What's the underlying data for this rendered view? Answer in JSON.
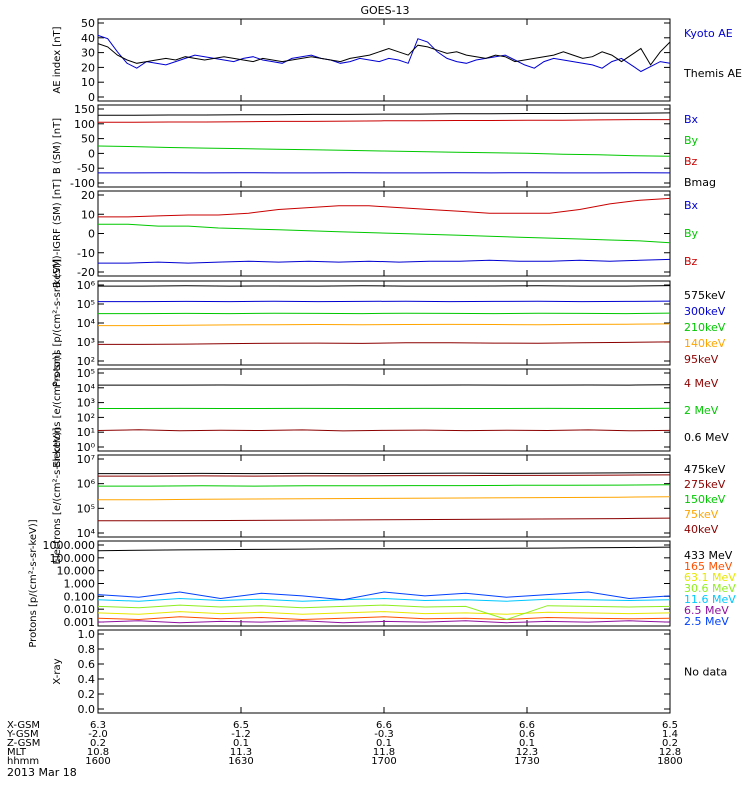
{
  "title": "GOES-13",
  "date_label": "2013 Mar 18",
  "colors": {
    "black": "#000000",
    "blue": "#0000d0",
    "green": "#00c800",
    "red": "#c80000",
    "orange": "#ffa500",
    "darkred": "#8b0000",
    "brightblue": "#0040ff",
    "yellow": "#e8e800",
    "yellowgreen": "#90ee20",
    "cyan": "#00c8ff",
    "darkorange": "#ff5000",
    "purple": "#9010a0"
  },
  "chart_data": [
    {
      "type": "line",
      "ylabel": "AE index [nT]",
      "ylim": [
        0,
        50
      ],
      "yticks": [
        "0",
        "10",
        "20",
        "30",
        "40",
        "50"
      ],
      "series": [
        {
          "name": "Kyoto AE",
          "color": "blue",
          "values": [
            40,
            38,
            30,
            23,
            20,
            24,
            23,
            22,
            24,
            26,
            28,
            27,
            26,
            25,
            24,
            26,
            27,
            25,
            24,
            23,
            26,
            27,
            28,
            26,
            25,
            23,
            24,
            26,
            25,
            24,
            26,
            25,
            23,
            38,
            36,
            30,
            26,
            24,
            23,
            25,
            26,
            27,
            28,
            25,
            22,
            20,
            24,
            26,
            25,
            24,
            23,
            22,
            20,
            24,
            26,
            22,
            18,
            21,
            24,
            23
          ]
        },
        {
          "name": "Themis AE",
          "color": "black",
          "values": [
            35,
            33,
            28,
            25,
            23,
            24,
            25,
            26,
            25,
            27,
            26,
            25,
            26,
            27,
            26,
            25,
            24,
            26,
            25,
            24,
            25,
            26,
            27,
            26,
            25,
            24,
            26,
            27,
            28,
            30,
            32,
            30,
            28,
            34,
            33,
            31,
            29,
            30,
            28,
            27,
            26,
            28,
            27,
            24,
            25,
            26,
            27,
            28,
            30,
            28,
            26,
            27,
            30,
            28,
            24,
            28,
            32,
            22,
            30,
            36
          ]
        }
      ]
    },
    {
      "type": "line",
      "ylabel": "B (SM) [nT]",
      "ylim": [
        -120,
        160
      ],
      "yticks": [
        "-100",
        "-50",
        "0",
        "50",
        "100",
        "150"
      ],
      "series": [
        {
          "name": "Bx",
          "color": "blue",
          "values": [
            -72,
            -72,
            -71,
            -72,
            -71,
            -72,
            -72,
            -71,
            -72,
            -72,
            -71,
            -72,
            -71,
            -72,
            -72,
            -71,
            -72
          ]
        },
        {
          "name": "By",
          "color": "green",
          "values": [
            20,
            18,
            15,
            13,
            11,
            9,
            7,
            5,
            3,
            1,
            -1,
            -3,
            -5,
            -8,
            -10,
            -13,
            -15
          ]
        },
        {
          "name": "Bz",
          "color": "red",
          "values": [
            101,
            101,
            102,
            102,
            103,
            104,
            104,
            105,
            106,
            106,
            107,
            107,
            108,
            108,
            109,
            110,
            110
          ]
        },
        {
          "name": "Bmag",
          "color": "black",
          "values": [
            125,
            125,
            126,
            126,
            127,
            127,
            128,
            128,
            129,
            129,
            130,
            130,
            131,
            131,
            132,
            132,
            133
          ]
        }
      ]
    },
    {
      "type": "line",
      "ylabel": "B (SM)-IGRF (SM) [nT]",
      "ylim": [
        -24,
        22
      ],
      "yticks": [
        "-20",
        "-10",
        "0",
        "10",
        "20"
      ],
      "series": [
        {
          "name": "Bx",
          "color": "blue",
          "values": [
            -17,
            -17,
            -16.5,
            -17,
            -16.5,
            -16,
            -16.5,
            -16,
            -16.5,
            -16,
            -16.5,
            -16,
            -16,
            -15.5,
            -16,
            -16,
            -15.5,
            -16,
            -15.5,
            -15
          ]
        },
        {
          "name": "By",
          "color": "green",
          "values": [
            4,
            4,
            3,
            3,
            2,
            1.5,
            1,
            0.5,
            0,
            -0.5,
            -1,
            -1.5,
            -2,
            -2.5,
            -3,
            -3.5,
            -4,
            -4.5,
            -5,
            -6
          ]
        },
        {
          "name": "Bz",
          "color": "red",
          "values": [
            8,
            8,
            8.5,
            9,
            9,
            10,
            12,
            13,
            14,
            14,
            13,
            12,
            11,
            10,
            10,
            10,
            12,
            15,
            17,
            18
          ]
        }
      ]
    },
    {
      "type": "line",
      "ylabel": "Protons [p/(cm²-s-sr-keV)]",
      "ylim": [
        1.3,
        6.2
      ],
      "log": true,
      "yticks": [
        "10²",
        "10³",
        "10⁴",
        "10⁵",
        "10⁶"
      ],
      "series": [
        {
          "name": "575keV",
          "color": "black",
          "values": [
            5.9,
            5.9,
            5.92,
            5.9,
            5.91,
            5.9,
            5.92,
            5.9,
            5.9,
            5.91,
            5.92,
            5.9,
            5.9,
            5.93
          ]
        },
        {
          "name": "300keV",
          "color": "blue",
          "values": [
            5.0,
            5.0,
            5.01,
            5.0,
            5.02,
            5.0,
            5.01,
            5.02,
            5.0,
            5.01,
            5.02,
            5.0,
            5.01,
            5.03
          ]
        },
        {
          "name": "210keV",
          "color": "green",
          "values": [
            4.3,
            4.3,
            4.31,
            4.3,
            4.32,
            4.31,
            4.3,
            4.32,
            4.31,
            4.3,
            4.32,
            4.31,
            4.3,
            4.33
          ]
        },
        {
          "name": "140keV",
          "color": "orange",
          "values": [
            3.6,
            3.6,
            3.62,
            3.64,
            3.65,
            3.66,
            3.65,
            3.66,
            3.67,
            3.66,
            3.65,
            3.67,
            3.68,
            3.7
          ]
        },
        {
          "name": "95keV",
          "color": "darkred",
          "values": [
            2.5,
            2.5,
            2.52,
            2.55,
            2.57,
            2.58,
            2.56,
            2.6,
            2.6,
            2.58,
            2.57,
            2.6,
            2.62,
            2.65
          ]
        }
      ]
    },
    {
      "type": "line",
      "ylabel": "Electrons [e/(cm²-s-sr)]",
      "ylim": [
        -0.4,
        5.2
      ],
      "log": true,
      "yticks": [
        "10⁰",
        "10¹",
        "10²",
        "10³",
        "10⁴",
        "10⁵"
      ],
      "series": [
        {
          "name": "4 MeV",
          "color": "darkred",
          "values": [
            1.0,
            1.05,
            0.98,
            1.02,
            1.0,
            1.04,
            0.97,
            1.01,
            1.03,
            0.99,
            1.02,
            1.0,
            1.04,
            0.98,
            1.01
          ]
        },
        {
          "name": "2 MeV",
          "color": "green",
          "values": [
            2.5,
            2.5,
            2.51,
            2.5,
            2.5,
            2.51,
            2.5,
            2.5,
            2.51,
            2.5,
            2.5,
            2.51,
            2.5,
            2.5,
            2.52
          ]
        },
        {
          "name": "0.6 MeV",
          "color": "black",
          "values": [
            4.1,
            4.1,
            4.1,
            4.11,
            4.1,
            4.1,
            4.11,
            4.1,
            4.1,
            4.11,
            4.1,
            4.1,
            4.11,
            4.1,
            4.12
          ]
        }
      ]
    },
    {
      "type": "line",
      "ylabel": "Electrons [e/(cm²-s-sr-keV)]",
      "ylim": [
        3.7,
        7.0
      ],
      "log": true,
      "yticks": [
        "10⁴",
        "10⁵",
        "10⁶",
        "10⁷"
      ],
      "series": [
        {
          "name": "475keV",
          "color": "black",
          "values": [
            6.25,
            6.25,
            6.26,
            6.25,
            6.26,
            6.25,
            6.26,
            6.27,
            6.26,
            6.27,
            6.28,
            6.3
          ]
        },
        {
          "name": "275keV",
          "color": "darkred",
          "values": [
            6.15,
            6.15,
            6.16,
            6.15,
            6.16,
            6.16,
            6.17,
            6.17,
            6.18,
            6.18,
            6.19,
            6.2
          ]
        },
        {
          "name": "150keV",
          "color": "green",
          "values": [
            5.75,
            5.75,
            5.76,
            5.75,
            5.76,
            5.76,
            5.77,
            5.77,
            5.78,
            5.78,
            5.79,
            5.8
          ]
        },
        {
          "name": "75keV",
          "color": "orange",
          "values": [
            5.2,
            5.2,
            5.22,
            5.23,
            5.24,
            5.25,
            5.26,
            5.27,
            5.28,
            5.29,
            5.3,
            5.32
          ]
        },
        {
          "name": "40keV",
          "color": "darkred",
          "values": [
            4.35,
            4.35,
            4.36,
            4.37,
            4.38,
            4.39,
            4.4,
            4.41,
            4.42,
            4.43,
            4.44,
            4.46
          ]
        }
      ]
    },
    {
      "type": "line",
      "ylabel": "Protons [p/(cm²-s-sr-keV)]",
      "ylim": [
        -3.2,
        3.3
      ],
      "log": true,
      "yticks": [
        "0.001",
        "0.010",
        "0.100",
        "1.000",
        "10.000",
        "100.000",
        "1000.000"
      ],
      "series": [
        {
          "name": "433 MeV",
          "color": "black",
          "values": [
            2.55,
            2.6,
            2.62,
            2.64,
            2.66,
            2.68,
            2.7,
            2.7,
            2.72,
            2.73,
            2.75,
            2.76,
            2.78,
            2.8,
            2.83
          ]
        },
        {
          "name": "165 MeV",
          "color": "darkorange",
          "values": [
            -2.6,
            -2.7,
            -2.5,
            -2.65,
            -2.55,
            -2.7,
            -2.6,
            -2.5,
            -2.65,
            -2.6,
            -2.7,
            -2.55,
            -2.6,
            -2.65,
            -2.6
          ]
        },
        {
          "name": "63.1 MeV",
          "color": "yellow",
          "values": [
            -2.2,
            -2.3,
            -2.1,
            -2.25,
            -2.15,
            -2.3,
            -2.2,
            -2.1,
            -2.25,
            -2.2,
            -2.3,
            -2.15,
            -2.2,
            -2.25,
            -2.2
          ]
        },
        {
          "name": "30.6 MeV",
          "color": "yellowgreen",
          "values": [
            -1.7,
            -1.8,
            -1.6,
            -1.75,
            -1.65,
            -1.8,
            -1.7,
            -1.6,
            -1.75,
            -1.7,
            -2.7,
            -1.65,
            -1.7,
            -1.75,
            -1.7
          ]
        },
        {
          "name": "11.6 MeV",
          "color": "cyan",
          "values": [
            -1.2,
            -1.3,
            -1.1,
            -1.25,
            -1.15,
            -1.3,
            -1.2,
            -1.1,
            -1.25,
            -1.2,
            -1.3,
            -1.15,
            -1.2,
            -1.25,
            -1.2
          ]
        },
        {
          "name": "6.5 MeV",
          "color": "purple",
          "values": [
            -2.9,
            -2.8,
            -2.95,
            -2.85,
            -2.9,
            -2.8,
            -2.95,
            -2.85,
            -2.9,
            -2.8,
            -2.95,
            -2.85,
            -2.9,
            -2.8,
            -2.9
          ]
        },
        {
          "name": "2.5 MeV",
          "color": "brightblue",
          "values": [
            -0.8,
            -1.0,
            -0.6,
            -1.1,
            -0.7,
            -0.9,
            -1.2,
            -0.6,
            -0.9,
            -0.7,
            -1.0,
            -0.8,
            -0.6,
            -1.1,
            -0.9
          ]
        }
      ]
    },
    {
      "type": "line",
      "ylabel": "X-ray",
      "ylim": [
        0,
        1
      ],
      "yticks": [
        "0.0",
        "0.2",
        "0.4",
        "0.6",
        "0.8",
        "1.0"
      ],
      "series": [],
      "note": "No data"
    }
  ],
  "x_axis": {
    "rows": [
      {
        "label": "X-GSM",
        "values": [
          "6.3",
          "6.5",
          "6.6",
          "6.6",
          "6.5"
        ]
      },
      {
        "label": "Y-GSM",
        "values": [
          "-2.0",
          "-1.2",
          "-0.3",
          "0.6",
          "1.4"
        ]
      },
      {
        "label": "Z-GSM",
        "values": [
          "0.2",
          "0.1",
          "0.1",
          "0.1",
          "0.2"
        ]
      },
      {
        "label": "MLT",
        "values": [
          "10.8",
          "11.3",
          "11.8",
          "12.3",
          "12.8"
        ]
      },
      {
        "label": "hhmm",
        "values": [
          "1600",
          "1630",
          "1700",
          "1730",
          "1800"
        ]
      }
    ]
  }
}
